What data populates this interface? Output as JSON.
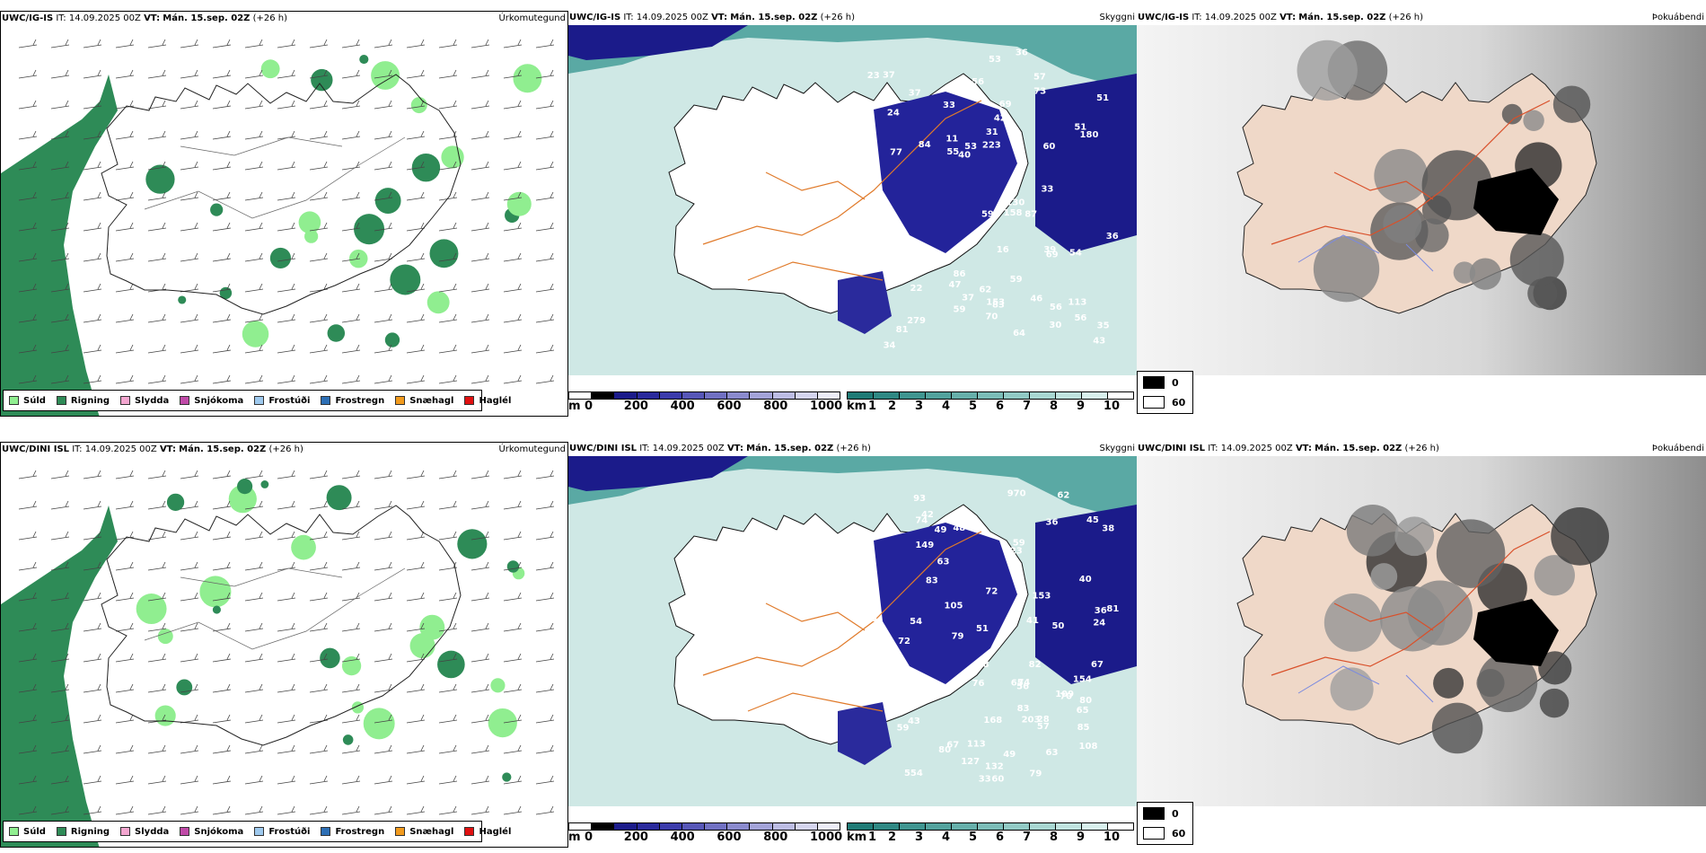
{
  "rows": [
    {
      "model": "UWC/IG-IS",
      "it_label": "IT:",
      "it_value": "14.09.2025 00Z",
      "vt_label": "VT:",
      "vt_value": "Mán. 15.sep. 02Z",
      "lead": "(+26 h)",
      "precip_title": "Úrkomutegund",
      "cloud_title": "Skyggni",
      "fog_title": "Þokuábendi",
      "cloud_labels": [
        "81",
        "54",
        "130",
        "16",
        "56",
        "36",
        "113",
        "57",
        "56",
        "47",
        "43",
        "55",
        "37",
        "53",
        "46",
        "11",
        "39",
        "90",
        "59",
        "51",
        "23",
        "279",
        "70",
        "87",
        "69",
        "73",
        "53",
        "42",
        "180",
        "59",
        "56",
        "39",
        "69",
        "34",
        "158",
        "64",
        "153",
        "60",
        "77",
        "62",
        "84",
        "86",
        "33",
        "59",
        "33",
        "40",
        "31",
        "83",
        "36",
        "35",
        "24",
        "223",
        "37",
        "30",
        "22",
        "37",
        "51"
      ]
    },
    {
      "model": "UWC/DINI ISL",
      "it_label": "IT:",
      "it_value": "14.09.2025 00Z",
      "vt_label": "VT:",
      "vt_value": "Mán. 15.sep. 02Z",
      "lead": "(+26 h)",
      "precip_title": "Úrkomutegund",
      "cloud_title": "Skyggni",
      "fog_title": "Þokuábendi",
      "cloud_labels": [
        "203",
        "54",
        "40",
        "113",
        "108",
        "149",
        "63",
        "62",
        "60",
        "65",
        "83",
        "554",
        "153",
        "970",
        "51",
        "65",
        "72",
        "63",
        "168",
        "42",
        "79",
        "85",
        "74",
        "56",
        "48",
        "127",
        "80",
        "49",
        "59",
        "33",
        "38",
        "36",
        "28",
        "50",
        "223",
        "24",
        "85",
        "36",
        "72",
        "81",
        "93",
        "57",
        "60",
        "41",
        "45",
        "74",
        "79",
        "76",
        "67",
        "49",
        "83",
        "67",
        "82",
        "70",
        "43",
        "105",
        "80",
        "109",
        "154",
        "48",
        "132",
        "65",
        "59"
      ]
    }
  ],
  "precip_legend": [
    {
      "label": "Súld",
      "color": "#90ee90"
    },
    {
      "label": "Rigning",
      "color": "#2e8b57"
    },
    {
      "label": "Slydda",
      "color": "#f4a6d0"
    },
    {
      "label": "Snjókoma",
      "color": "#c04aa8"
    },
    {
      "label": "Frostúði",
      "color": "#9ec9ee"
    },
    {
      "label": "Frostregn",
      "color": "#2d6fb5"
    },
    {
      "label": "Snæhagl",
      "color": "#f29b1e"
    },
    {
      "label": "Haglél",
      "color": "#e01010"
    }
  ],
  "height_scale": {
    "unit": "m",
    "ticks": [
      "0",
      "200",
      "400",
      "600",
      "800",
      "1000"
    ],
    "colors": [
      "#ffffff",
      "#000000",
      "#1b1b8a",
      "#2a2a9c",
      "#3b3bab",
      "#5656b7",
      "#7070c2",
      "#8a8acd",
      "#a3a3d8",
      "#bcbce3",
      "#d4d4ee",
      "#ececf7"
    ]
  },
  "visibility_scale": {
    "unit": "km",
    "ticks": [
      "1",
      "2",
      "3",
      "4",
      "5",
      "6",
      "7",
      "8",
      "9",
      "10"
    ],
    "colors": [
      "#1f7b76",
      "#2f8883",
      "#3f9590",
      "#52a29d",
      "#66afaa",
      "#7bbcb7",
      "#91c9c4",
      "#a8d6d1",
      "#c0e3df",
      "#d8f0ed",
      "#ffffff"
    ]
  },
  "fog_legend": [
    {
      "label": "0",
      "color": "#000000"
    },
    {
      "label": "60",
      "color": "#ffffff"
    }
  ]
}
